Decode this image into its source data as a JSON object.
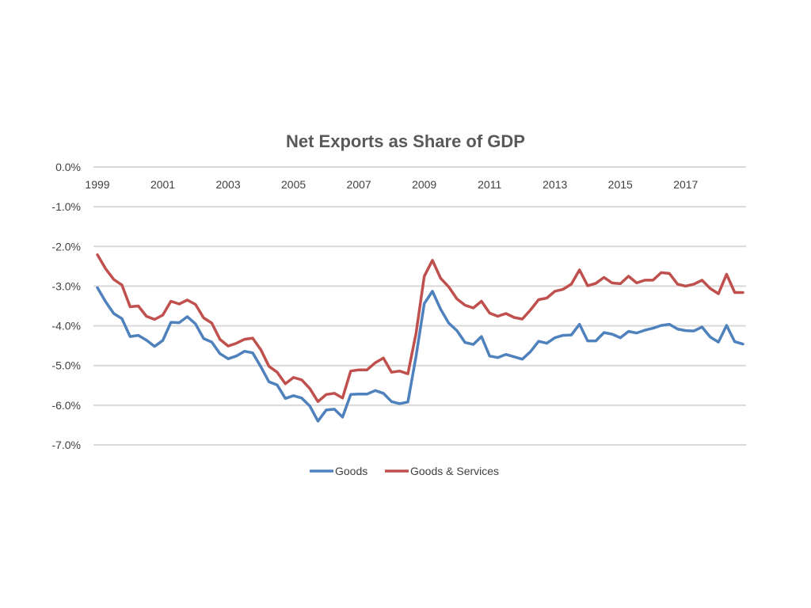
{
  "chart_data": {
    "type": "line",
    "title": "Net Exports as Share of GDP",
    "xlabel": "",
    "ylabel": "",
    "ylim": [
      -7.0,
      0.0
    ],
    "y_ticks": [
      0,
      -1,
      -2,
      -3,
      -4,
      -5,
      -6,
      -7
    ],
    "y_tick_labels": [
      "0.0%",
      "-1.0%",
      "-2.0%",
      "-3.0%",
      "-4.0%",
      "-5.0%",
      "-6.0%",
      "-7.0%"
    ],
    "x_start": 1999,
    "x_end": 2018.75,
    "x_tick_labels": [
      "1999",
      "2001",
      "2003",
      "2005",
      "2007",
      "2009",
      "2011",
      "2013",
      "2015",
      "2017"
    ],
    "grid": true,
    "legend_position": "bottom",
    "series": [
      {
        "name": "Goods",
        "color": "#4f81bd",
        "values": [
          -3.04,
          -3.39,
          -3.69,
          -3.82,
          -4.27,
          -4.24,
          -4.36,
          -4.52,
          -4.37,
          -3.91,
          -3.92,
          -3.77,
          -3.95,
          -4.32,
          -4.41,
          -4.7,
          -4.83,
          -4.76,
          -4.64,
          -4.68,
          -5.03,
          -5.41,
          -5.49,
          -5.83,
          -5.76,
          -5.82,
          -6.02,
          -6.4,
          -6.12,
          -6.1,
          -6.3,
          -5.73,
          -5.72,
          -5.72,
          -5.63,
          -5.7,
          -5.91,
          -5.96,
          -5.92,
          -4.77,
          -3.44,
          -3.13,
          -3.58,
          -3.93,
          -4.12,
          -4.42,
          -4.47,
          -4.27,
          -4.76,
          -4.8,
          -4.72,
          -4.78,
          -4.84,
          -4.65,
          -4.39,
          -4.44,
          -4.3,
          -4.24,
          -4.23,
          -3.96,
          -4.38,
          -4.38,
          -4.17,
          -4.21,
          -4.3,
          -4.14,
          -4.18,
          -4.11,
          -4.06,
          -3.99,
          -3.96,
          -4.08,
          -4.12,
          -4.13,
          -4.03,
          -4.28,
          -4.41,
          -3.99,
          -4.4,
          -4.46
        ]
      },
      {
        "name": "Goods & Services",
        "color": "#c0504d",
        "values": [
          -2.21,
          -2.56,
          -2.83,
          -2.97,
          -3.52,
          -3.5,
          -3.76,
          -3.84,
          -3.73,
          -3.38,
          -3.45,
          -3.35,
          -3.46,
          -3.8,
          -3.93,
          -4.34,
          -4.51,
          -4.44,
          -4.34,
          -4.31,
          -4.6,
          -5.02,
          -5.17,
          -5.46,
          -5.3,
          -5.36,
          -5.58,
          -5.91,
          -5.73,
          -5.7,
          -5.82,
          -5.14,
          -5.11,
          -5.11,
          -4.93,
          -4.81,
          -5.17,
          -5.14,
          -5.21,
          -4.19,
          -2.75,
          -2.35,
          -2.8,
          -3.02,
          -3.32,
          -3.48,
          -3.55,
          -3.38,
          -3.68,
          -3.76,
          -3.69,
          -3.79,
          -3.83,
          -3.6,
          -3.34,
          -3.3,
          -3.13,
          -3.08,
          -2.95,
          -2.59,
          -2.99,
          -2.93,
          -2.78,
          -2.92,
          -2.94,
          -2.75,
          -2.92,
          -2.85,
          -2.85,
          -2.66,
          -2.68,
          -2.95,
          -3.0,
          -2.95,
          -2.85,
          -3.06,
          -3.19,
          -2.7,
          -3.16,
          -3.16
        ]
      }
    ]
  }
}
